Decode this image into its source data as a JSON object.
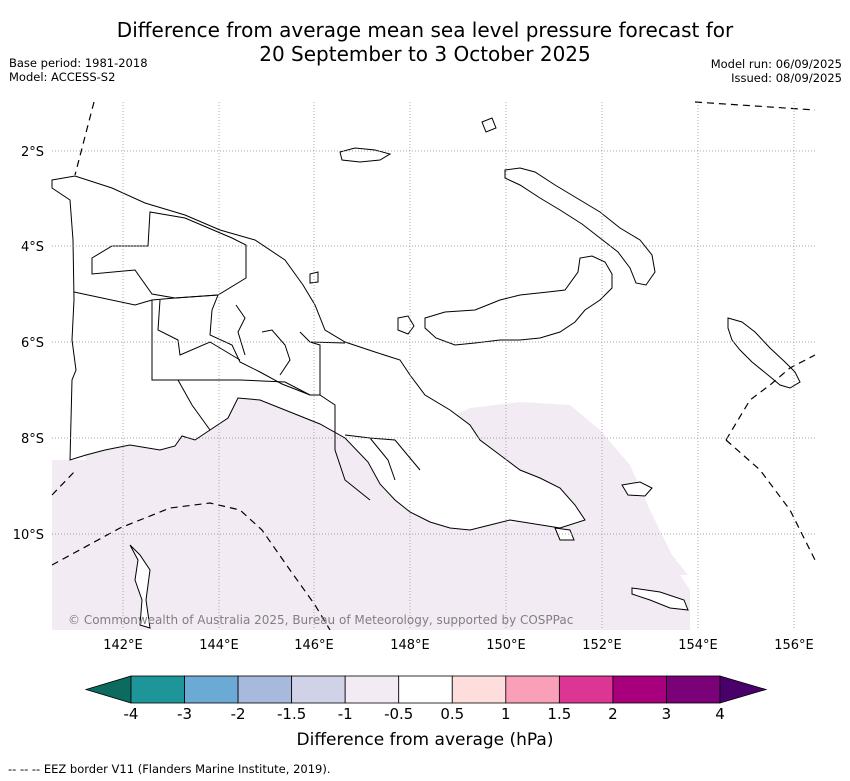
{
  "title": "Difference from average mean sea level pressure forecast for\n20 September to 3 October 2025",
  "meta_left": [
    "Base period: 1981-2018",
    "Model: ACCESS-S2"
  ],
  "meta_right": [
    "Model run: 06/09/2025",
    "Issued: 08/09/2025"
  ],
  "map": {
    "lon_ticks": [
      "142°E",
      "144°E",
      "146°E",
      "148°E",
      "150°E",
      "152°E",
      "154°E",
      "156°E"
    ],
    "lat_ticks": [
      "2°S",
      "4°S",
      "6°S",
      "8°S",
      "10°S"
    ],
    "copyright": "© Commonwealth of Australia 2025, Bureau of Meteorology, supported by COSPPac",
    "shading_color": "#f3ebf4"
  },
  "colorbar": {
    "colors": [
      "#0a6b5e",
      "#1e9598",
      "#6aaad4",
      "#a7b9dd",
      "#d0d2e8",
      "#f3ebf4",
      "#ffffff",
      "#fddedd",
      "#f9a0b8",
      "#dd3594",
      "#a8007d",
      "#7a0177",
      "#4a006a"
    ],
    "labels": [
      "-4",
      "-3",
      "-2",
      "-1.5",
      "-1",
      "-0.5",
      "0.5",
      "1",
      "1.5",
      "2",
      "3",
      "4"
    ],
    "title": "Difference from average (hPa)"
  },
  "footer": "--  --  -- EEZ border V11 (Flanders Marine Institute, 2019)."
}
